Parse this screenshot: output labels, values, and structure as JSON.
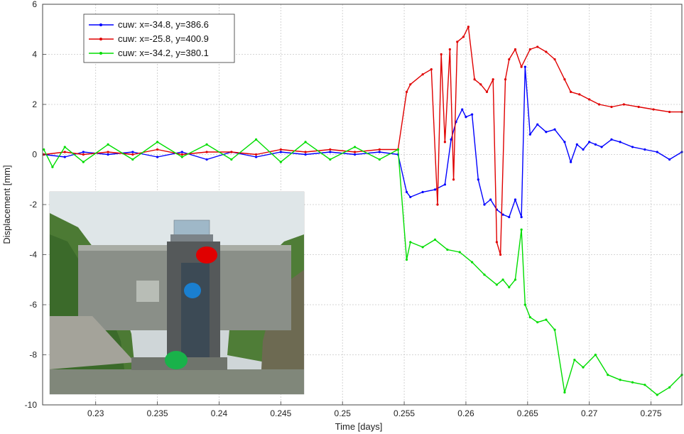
{
  "chart_data": {
    "type": "line",
    "xlabel": "Time [days]",
    "ylabel": "Displacement [mm]",
    "xlim": [
      0.2257,
      0.2775
    ],
    "ylim": [
      -10,
      6
    ],
    "xticks": [
      0.23,
      0.235,
      0.24,
      0.245,
      0.25,
      0.255,
      0.26,
      0.265,
      0.27,
      0.275
    ],
    "xtick_labels": [
      "0.23",
      "0.235",
      "0.24",
      "0.245",
      "0.25",
      "0.255",
      "0.26",
      "0.265",
      "0.27",
      "0.275"
    ],
    "yticks": [
      -10,
      -8,
      -6,
      -4,
      -2,
      0,
      2,
      4,
      6
    ],
    "ytick_labels": [
      "-10",
      "-8",
      "-6",
      "-4",
      "-2",
      "0",
      "2",
      "4",
      "6"
    ],
    "grid": true,
    "legend_position": "top-left",
    "series": [
      {
        "name": "cuw: x=-34.8, y=386.6",
        "color": "#0000ff",
        "x": [
          0.2258,
          0.2275,
          0.229,
          0.231,
          0.233,
          0.235,
          0.237,
          0.239,
          0.241,
          0.243,
          0.245,
          0.247,
          0.249,
          0.251,
          0.253,
          0.2545,
          0.2552,
          0.2555,
          0.2565,
          0.2575,
          0.2583,
          0.2588,
          0.2592,
          0.2597,
          0.26,
          0.2605,
          0.261,
          0.2615,
          0.262,
          0.2625,
          0.263,
          0.2635,
          0.264,
          0.2645,
          0.2648,
          0.2652,
          0.2658,
          0.2665,
          0.2672,
          0.268,
          0.2685,
          0.269,
          0.2695,
          0.27,
          0.2705,
          0.271,
          0.2718,
          0.2725,
          0.2735,
          0.2745,
          0.2755,
          0.2765,
          0.2775
        ],
        "y": [
          0.0,
          -0.1,
          0.1,
          0.0,
          0.1,
          -0.1,
          0.1,
          -0.2,
          0.1,
          -0.1,
          0.1,
          0.0,
          0.1,
          0.0,
          0.1,
          0.0,
          -1.5,
          -1.7,
          -1.5,
          -1.4,
          -1.2,
          0.6,
          1.3,
          1.8,
          1.5,
          1.6,
          -1.0,
          -2.0,
          -1.8,
          -2.2,
          -2.4,
          -2.5,
          -1.8,
          -2.5,
          3.5,
          0.8,
          1.2,
          0.9,
          1.0,
          0.5,
          -0.3,
          0.4,
          0.2,
          0.5,
          0.4,
          0.3,
          0.6,
          0.5,
          0.3,
          0.2,
          0.1,
          -0.2,
          0.1
        ]
      },
      {
        "name": "cuw: x=-25.8, y=400.9",
        "color": "#e00000",
        "x": [
          0.2258,
          0.2275,
          0.229,
          0.231,
          0.233,
          0.235,
          0.237,
          0.239,
          0.241,
          0.243,
          0.245,
          0.247,
          0.249,
          0.251,
          0.253,
          0.2545,
          0.2552,
          0.2555,
          0.2565,
          0.2572,
          0.2577,
          0.258,
          0.2583,
          0.2587,
          0.259,
          0.2593,
          0.2598,
          0.2602,
          0.2607,
          0.2612,
          0.2617,
          0.2622,
          0.2625,
          0.2628,
          0.2632,
          0.2635,
          0.264,
          0.2645,
          0.2652,
          0.2658,
          0.2665,
          0.2672,
          0.268,
          0.2685,
          0.2692,
          0.27,
          0.2708,
          0.2718,
          0.2728,
          0.274,
          0.2752,
          0.2765,
          0.2775
        ],
        "y": [
          0.0,
          0.1,
          0.0,
          0.1,
          0.0,
          0.2,
          0.0,
          0.1,
          0.1,
          0.0,
          0.2,
          0.1,
          0.2,
          0.1,
          0.2,
          0.2,
          2.5,
          2.8,
          3.2,
          3.4,
          -2.0,
          4.0,
          0.5,
          4.2,
          -1.0,
          4.5,
          4.7,
          5.1,
          3.0,
          2.8,
          2.5,
          3.0,
          -3.5,
          -4.0,
          3.0,
          3.8,
          4.2,
          3.5,
          4.2,
          4.3,
          4.1,
          3.8,
          3.0,
          2.5,
          2.4,
          2.2,
          2.0,
          1.9,
          2.0,
          1.9,
          1.8,
          1.7,
          1.7
        ]
      },
      {
        "name": "cuw: x=-34.2, y=380.1",
        "color": "#00dd00",
        "x": [
          0.2258,
          0.2265,
          0.2275,
          0.229,
          0.231,
          0.233,
          0.235,
          0.237,
          0.239,
          0.241,
          0.243,
          0.245,
          0.247,
          0.249,
          0.251,
          0.253,
          0.2545,
          0.2552,
          0.2555,
          0.2565,
          0.2575,
          0.2585,
          0.2595,
          0.2605,
          0.2615,
          0.2625,
          0.263,
          0.2635,
          0.264,
          0.2645,
          0.2648,
          0.2652,
          0.2658,
          0.2665,
          0.2672,
          0.268,
          0.2688,
          0.2695,
          0.2705,
          0.2715,
          0.2725,
          0.2735,
          0.2745,
          0.2755,
          0.2765,
          0.2775
        ],
        "y": [
          0.2,
          -0.5,
          0.3,
          -0.3,
          0.4,
          -0.2,
          0.5,
          -0.1,
          0.4,
          -0.2,
          0.6,
          -0.3,
          0.5,
          -0.2,
          0.3,
          -0.2,
          0.2,
          -4.2,
          -3.5,
          -3.7,
          -3.4,
          -3.8,
          -3.9,
          -4.3,
          -4.8,
          -5.2,
          -5.0,
          -5.3,
          -5.0,
          -3.0,
          -6.0,
          -6.5,
          -6.7,
          -6.6,
          -7.0,
          -9.5,
          -8.2,
          -8.5,
          -8.0,
          -8.8,
          -9.0,
          -9.1,
          -9.2,
          -9.6,
          -9.3,
          -8.8
        ]
      }
    ]
  },
  "photo": {
    "markers": [
      {
        "label": "red-marker",
        "color": "#e00000"
      },
      {
        "label": "blue-marker",
        "color": "#1a7fd0"
      },
      {
        "label": "green-marker",
        "color": "#19b24a"
      }
    ]
  }
}
